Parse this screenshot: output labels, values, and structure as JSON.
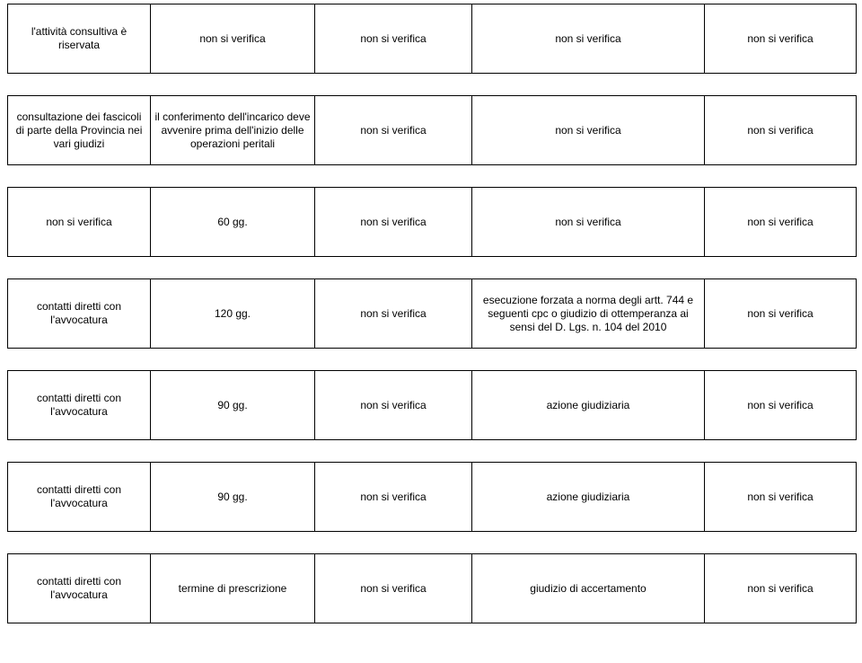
{
  "common": {
    "nsv": "non si verifica"
  },
  "rows": [
    {
      "c1": "l'attività consultiva è riservata",
      "c2": "non si verifica",
      "c3": "non si verifica",
      "c4": "non si verifica",
      "c5": "non si verifica"
    },
    {
      "c1": "consultazione dei fascicoli di parte della Provincia nei vari giudizi",
      "c2": "il conferimento dell'incarico deve avvenire prima dell'inizio delle operazioni peritali",
      "c3": "non si verifica",
      "c4": "non si verifica",
      "c5": "non si verifica"
    },
    {
      "c1": "non si verifica",
      "c2": "60 gg.",
      "c3": "non si verifica",
      "c4": "non si verifica",
      "c5": "non si verifica"
    },
    {
      "c1": "contatti diretti con l'avvocatura",
      "c2": "120 gg.",
      "c3": "non si verifica",
      "c4": "esecuzione forzata a norma degli artt. 744 e seguenti cpc o giudizio di ottemperanza ai sensi del D. Lgs. n. 104 del 2010",
      "c5": "non si verifica"
    },
    {
      "c1": "contatti diretti con l'avvocatura",
      "c2": "90 gg.",
      "c3": "non si verifica",
      "c4": "azione giudiziaria",
      "c5": "non si verifica"
    },
    {
      "c1": "contatti diretti con l'avvocatura",
      "c2": "90 gg.",
      "c3": "non si verifica",
      "c4": "azione giudiziaria",
      "c5": "non si verifica"
    },
    {
      "c1": "contatti diretti con l'avvocatura",
      "c2": "termine di prescrizione",
      "c3": "non si verifica",
      "c4": "giudizio di accertamento",
      "c5": "non si verifica"
    }
  ]
}
